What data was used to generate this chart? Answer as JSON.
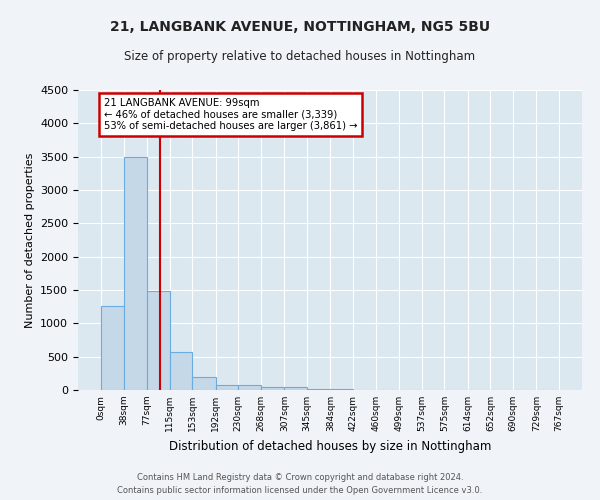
{
  "title1": "21, LANGBANK AVENUE, NOTTINGHAM, NG5 5BU",
  "title2": "Size of property relative to detached houses in Nottingham",
  "xlabel": "Distribution of detached houses by size in Nottingham",
  "ylabel": "Number of detached properties",
  "bin_edges": [
    0,
    38,
    77,
    115,
    153,
    192,
    230,
    268,
    307,
    345,
    384,
    422,
    460,
    499,
    537,
    575,
    614,
    652,
    690,
    729,
    767
  ],
  "bar_heights": [
    1260,
    3500,
    1480,
    570,
    200,
    80,
    70,
    50,
    40,
    20,
    10,
    5,
    5,
    4,
    2,
    2,
    2,
    2,
    2,
    2
  ],
  "bar_color": "#c5d8e8",
  "bar_edge_color": "#6aabe0",
  "property_size": 99,
  "property_label": "21 LANGBANK AVENUE: 99sqm",
  "annotation_line1": "← 46% of detached houses are smaller (3,339)",
  "annotation_line2": "53% of semi-detached houses are larger (3,861) →",
  "vline_color": "#cc0000",
  "annotation_box_color": "#cc0000",
  "ylim": [
    0,
    4500
  ],
  "yticks": [
    0,
    500,
    1000,
    1500,
    2000,
    2500,
    3000,
    3500,
    4000,
    4500
  ],
  "plot_bg_color": "#dce8f0",
  "fig_bg_color": "#f0f4f8",
  "grid_color": "#ffffff",
  "footer1": "Contains HM Land Registry data © Crown copyright and database right 2024.",
  "footer2": "Contains public sector information licensed under the Open Government Licence v3.0."
}
